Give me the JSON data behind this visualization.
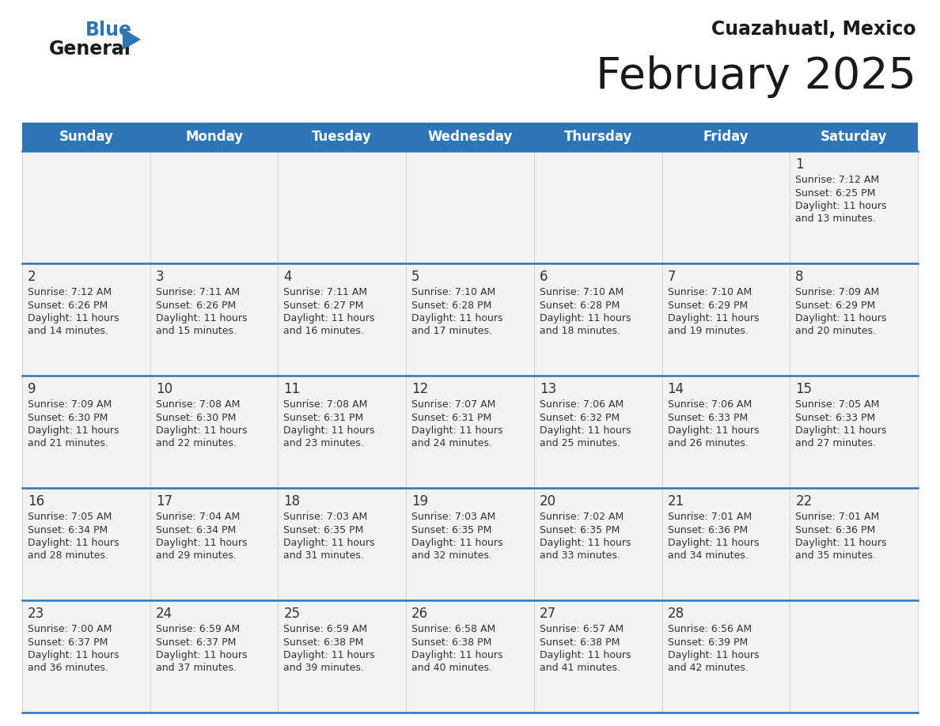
{
  "title": "February 2025",
  "subtitle": "Cuazahuatl, Mexico",
  "days_of_week": [
    "Sunday",
    "Monday",
    "Tuesday",
    "Wednesday",
    "Thursday",
    "Friday",
    "Saturday"
  ],
  "header_bg": "#2e75b6",
  "header_text_color": "#ffffff",
  "cell_bg": "#f5f5f5",
  "separator_color": "#2e75b6",
  "day_number_color": "#333333",
  "cell_text_color": "#333333",
  "title_color": "#1a1a1a",
  "subtitle_color": "#1a1a1a",
  "calendar_data": [
    [
      null,
      null,
      null,
      null,
      null,
      null,
      {
        "day": 1,
        "sunrise": "7:12 AM",
        "sunset": "6:25 PM",
        "daylight": "11 hours and 13 minutes."
      }
    ],
    [
      {
        "day": 2,
        "sunrise": "7:12 AM",
        "sunset": "6:26 PM",
        "daylight": "11 hours and 14 minutes."
      },
      {
        "day": 3,
        "sunrise": "7:11 AM",
        "sunset": "6:26 PM",
        "daylight": "11 hours and 15 minutes."
      },
      {
        "day": 4,
        "sunrise": "7:11 AM",
        "sunset": "6:27 PM",
        "daylight": "11 hours and 16 minutes."
      },
      {
        "day": 5,
        "sunrise": "7:10 AM",
        "sunset": "6:28 PM",
        "daylight": "11 hours and 17 minutes."
      },
      {
        "day": 6,
        "sunrise": "7:10 AM",
        "sunset": "6:28 PM",
        "daylight": "11 hours and 18 minutes."
      },
      {
        "day": 7,
        "sunrise": "7:10 AM",
        "sunset": "6:29 PM",
        "daylight": "11 hours and 19 minutes."
      },
      {
        "day": 8,
        "sunrise": "7:09 AM",
        "sunset": "6:29 PM",
        "daylight": "11 hours and 20 minutes."
      }
    ],
    [
      {
        "day": 9,
        "sunrise": "7:09 AM",
        "sunset": "6:30 PM",
        "daylight": "11 hours and 21 minutes."
      },
      {
        "day": 10,
        "sunrise": "7:08 AM",
        "sunset": "6:30 PM",
        "daylight": "11 hours and 22 minutes."
      },
      {
        "day": 11,
        "sunrise": "7:08 AM",
        "sunset": "6:31 PM",
        "daylight": "11 hours and 23 minutes."
      },
      {
        "day": 12,
        "sunrise": "7:07 AM",
        "sunset": "6:31 PM",
        "daylight": "11 hours and 24 minutes."
      },
      {
        "day": 13,
        "sunrise": "7:06 AM",
        "sunset": "6:32 PM",
        "daylight": "11 hours and 25 minutes."
      },
      {
        "day": 14,
        "sunrise": "7:06 AM",
        "sunset": "6:33 PM",
        "daylight": "11 hours and 26 minutes."
      },
      {
        "day": 15,
        "sunrise": "7:05 AM",
        "sunset": "6:33 PM",
        "daylight": "11 hours and 27 minutes."
      }
    ],
    [
      {
        "day": 16,
        "sunrise": "7:05 AM",
        "sunset": "6:34 PM",
        "daylight": "11 hours and 28 minutes."
      },
      {
        "day": 17,
        "sunrise": "7:04 AM",
        "sunset": "6:34 PM",
        "daylight": "11 hours and 29 minutes."
      },
      {
        "day": 18,
        "sunrise": "7:03 AM",
        "sunset": "6:35 PM",
        "daylight": "11 hours and 31 minutes."
      },
      {
        "day": 19,
        "sunrise": "7:03 AM",
        "sunset": "6:35 PM",
        "daylight": "11 hours and 32 minutes."
      },
      {
        "day": 20,
        "sunrise": "7:02 AM",
        "sunset": "6:35 PM",
        "daylight": "11 hours and 33 minutes."
      },
      {
        "day": 21,
        "sunrise": "7:01 AM",
        "sunset": "6:36 PM",
        "daylight": "11 hours and 34 minutes."
      },
      {
        "day": 22,
        "sunrise": "7:01 AM",
        "sunset": "6:36 PM",
        "daylight": "11 hours and 35 minutes."
      }
    ],
    [
      {
        "day": 23,
        "sunrise": "7:00 AM",
        "sunset": "6:37 PM",
        "daylight": "11 hours and 36 minutes."
      },
      {
        "day": 24,
        "sunrise": "6:59 AM",
        "sunset": "6:37 PM",
        "daylight": "11 hours and 37 minutes."
      },
      {
        "day": 25,
        "sunrise": "6:59 AM",
        "sunset": "6:38 PM",
        "daylight": "11 hours and 39 minutes."
      },
      {
        "day": 26,
        "sunrise": "6:58 AM",
        "sunset": "6:38 PM",
        "daylight": "11 hours and 40 minutes."
      },
      {
        "day": 27,
        "sunrise": "6:57 AM",
        "sunset": "6:38 PM",
        "daylight": "11 hours and 41 minutes."
      },
      {
        "day": 28,
        "sunrise": "6:56 AM",
        "sunset": "6:39 PM",
        "daylight": "11 hours and 42 minutes."
      },
      null
    ]
  ]
}
